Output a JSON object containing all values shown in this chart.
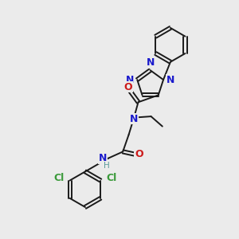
{
  "bg_color": "#ebebeb",
  "bond_color": "#1a1a1a",
  "n_color": "#1a1acc",
  "o_color": "#cc1a1a",
  "cl_color": "#3a9a3a",
  "h_color": "#5a9a9a",
  "figsize": [
    3.0,
    3.0
  ],
  "dpi": 100,
  "xlim": [
    0,
    10
  ],
  "ylim": [
    0,
    10
  ],
  "lw": 1.4,
  "fs": 9.0
}
